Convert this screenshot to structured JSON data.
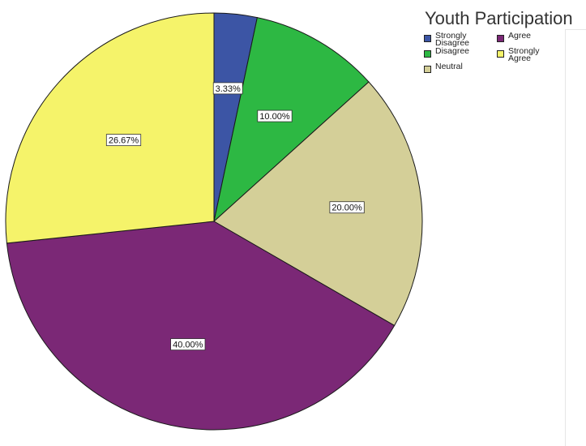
{
  "chart_data": {
    "type": "pie",
    "title": "Youth Participation",
    "legend_position": "top-right",
    "slices": [
      {
        "label": "Strongly Disagree",
        "legend_label": "Strongly\nDisagree",
        "value": 3.33,
        "data_label": "3.33%",
        "color": "#3c55a5"
      },
      {
        "label": "Disagree",
        "legend_label": "Disagree",
        "value": 10.0,
        "data_label": "10.00%",
        "color": "#2db843"
      },
      {
        "label": "Neutral",
        "legend_label": "Neutral",
        "value": 20.0,
        "data_label": "20.00%",
        "color": "#d4cf98"
      },
      {
        "label": "Agree",
        "legend_label": "Agree",
        "value": 40.0,
        "data_label": "40.00%",
        "color": "#7b2876"
      },
      {
        "label": "Strongly Agree",
        "legend_label": "Strongly\nAgree",
        "value": 26.67,
        "data_label": "26.67%",
        "color": "#f5f36a"
      }
    ],
    "legend_order": [
      0,
      3,
      1,
      4,
      2
    ]
  }
}
